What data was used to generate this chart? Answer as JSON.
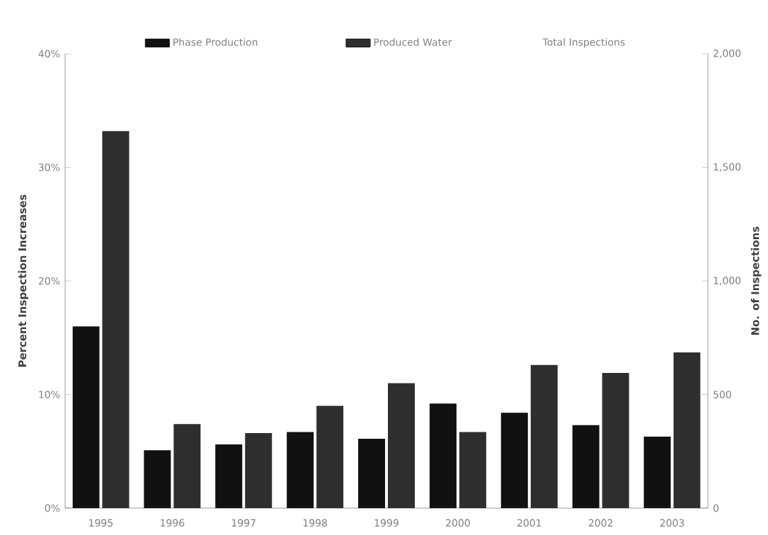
{
  "chart_data": {
    "type": "bar",
    "ylabel": "Percent Inspection Increases",
    "y2label": "No. of Inspections",
    "categories": [
      "1995",
      "1996",
      "1997",
      "1998",
      "1999",
      "2000",
      "2001",
      "2002",
      "2003"
    ],
    "series": [
      {
        "name": "Phase Production",
        "color": "#111111",
        "values": [
          16.0,
          5.1,
          5.6,
          6.7,
          6.1,
          9.2,
          8.4,
          7.3,
          6.3
        ]
      },
      {
        "name": "Produced Water",
        "color": "#2e2e2e",
        "values": [
          33.2,
          7.4,
          6.6,
          9.0,
          11.0,
          6.7,
          12.6,
          11.9,
          13.7
        ]
      }
    ],
    "annotations": [
      "Total Inspections"
    ],
    "ylim": [
      0,
      40
    ],
    "yticks": [
      {
        "value": 0,
        "label": "0%"
      },
      {
        "value": 10,
        "label": "10%"
      },
      {
        "value": 20,
        "label": "20%"
      },
      {
        "value": 30,
        "label": "30%"
      },
      {
        "value": 40,
        "label": "40%"
      }
    ],
    "y2lim": [
      0,
      2000
    ],
    "y2ticks": [
      0,
      {
        "value": 500,
        "label": "500"
      },
      {
        "value": 1000,
        "label": "1,000"
      },
      {
        "value": 1500,
        "label": "1,500"
      },
      {
        "value": 2000,
        "label": "2,000"
      }
    ],
    "legend": "top",
    "grid": false
  }
}
